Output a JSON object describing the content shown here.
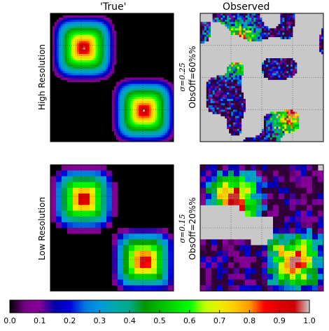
{
  "chart_data": {
    "type": "heatmap",
    "column_titles": [
      "'True'",
      "Observed"
    ],
    "row_labels": [
      "High Resolution",
      "Low Resolution"
    ],
    "panels": [
      {
        "id": "true-high",
        "row": 0,
        "col": 0,
        "grid": 60,
        "field": "two-gaussian-blobs",
        "peak": 1.0
      },
      {
        "id": "obs-high",
        "row": 0,
        "col": 1,
        "grid": 60,
        "sigma_text": "σ=0.25",
        "obs_off_text": "ObsOff=60%%",
        "obs_off": 0.6,
        "sigma": 0.25
      },
      {
        "id": "true-low",
        "row": 1,
        "col": 0,
        "grid": 22,
        "field": "two-gaussian-blobs",
        "peak": 1.0
      },
      {
        "id": "obs-low",
        "row": 1,
        "col": 1,
        "grid": 22,
        "sigma_text": "σ=0.15",
        "obs_off_text": "ObsOff=20%%",
        "obs_off": 0.2,
        "sigma": 0.15
      }
    ],
    "colorbar": {
      "colormap": "nipy_spectral",
      "range": [
        0.0,
        1.0
      ],
      "ticks": [
        "0.0",
        "0.1",
        "0.2",
        "0.3",
        "0.4",
        "0.5",
        "0.6",
        "0.7",
        "0.8",
        "0.9",
        "1.0"
      ]
    },
    "missing_color": "#c8c8c8",
    "background_color": "#000000"
  }
}
